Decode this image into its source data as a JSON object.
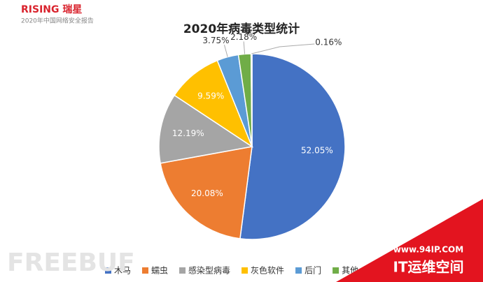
{
  "header": {
    "brand": "RISING 瑞星",
    "report": "2020年中国网络安全报告"
  },
  "watermark": {
    "left": "FREEBUF",
    "site": "www.94IP.COM",
    "name": "IT运维空间"
  },
  "chart_data": {
    "type": "pie",
    "title": "2020年病毒类型统计",
    "categories": [
      "木马",
      "蠕虫",
      "感染型病毒",
      "灰色软件",
      "后门",
      "其他",
      null
    ],
    "values": [
      52.05,
      20.08,
      12.19,
      9.59,
      3.75,
      2.18,
      0.16
    ],
    "value_labels": [
      "52.05%",
      "20.08%",
      "12.19%",
      "9.59%",
      "3.75%",
      "2.18%",
      "0.16%"
    ],
    "colors": [
      "#4472c4",
      "#ed7d31",
      "#a5a5a5",
      "#ffc000",
      "#5b9bd5",
      "#70ad47",
      "#264478"
    ],
    "legend": "bottom"
  }
}
